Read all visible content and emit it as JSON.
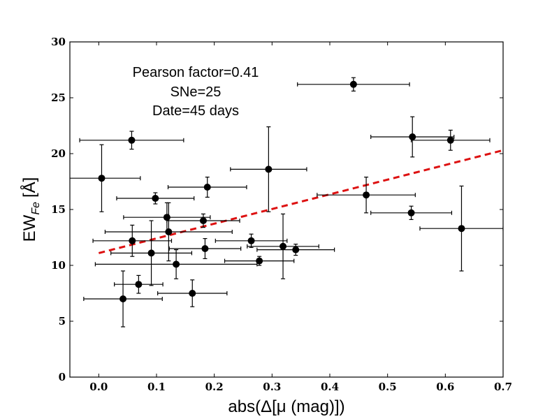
{
  "chart_data": {
    "type": "scatter",
    "annotations": [
      "Pearson factor=0.41",
      "SNe=25",
      "Date=45 days"
    ],
    "xlabel": "abs(Δ[μ (mag)])",
    "ylabel_main": "EW",
    "ylabel_sub": "Fe",
    "ylabel_unit": "[Å]",
    "xlim": [
      -0.05,
      0.7
    ],
    "ylim": [
      0,
      30
    ],
    "x_ticks": [
      0.0,
      0.1,
      0.2,
      0.3,
      0.4,
      0.5,
      0.6,
      0.7
    ],
    "x_tick_labels": [
      "0.0",
      "0.1",
      "0.2",
      "0.3",
      "0.4",
      "0.5",
      "0.6",
      "0.7"
    ],
    "y_ticks": [
      0,
      5,
      10,
      15,
      20,
      25,
      30
    ],
    "y_tick_labels": [
      "0",
      "5",
      "10",
      "15",
      "20",
      "25",
      "30"
    ],
    "fit_line": {
      "x": [
        0.0,
        0.7
      ],
      "y": [
        11.1,
        20.3
      ],
      "color": "#dd1111",
      "style": "dashed"
    },
    "points": [
      {
        "x": 0.005,
        "y": 17.8,
        "xerr": 0.067,
        "yerr": 3.0
      },
      {
        "x": 0.057,
        "y": 21.2,
        "xerr": 0.09,
        "yerr": 0.8
      },
      {
        "x": 0.042,
        "y": 7.0,
        "xerr": 0.068,
        "yerr": 2.5
      },
      {
        "x": 0.058,
        "y": 12.2,
        "xerr": 0.068,
        "yerr": 1.4
      },
      {
        "x": 0.069,
        "y": 8.3,
        "xerr": 0.042,
        "yerr": 0.8
      },
      {
        "x": 0.091,
        "y": 11.1,
        "xerr": 0.07,
        "yerr": 2.9
      },
      {
        "x": 0.098,
        "y": 16.0,
        "xerr": 0.067,
        "yerr": 0.5
      },
      {
        "x": 0.118,
        "y": 14.3,
        "xerr": 0.075,
        "yerr": 1.3
      },
      {
        "x": 0.121,
        "y": 13.0,
        "xerr": 0.11,
        "yerr": 2.6
      },
      {
        "x": 0.134,
        "y": 10.1,
        "xerr": 0.14,
        "yerr": 1.3
      },
      {
        "x": 0.162,
        "y": 7.5,
        "xerr": 0.06,
        "yerr": 1.2
      },
      {
        "x": 0.181,
        "y": 14.0,
        "xerr": 0.063,
        "yerr": 0.6
      },
      {
        "x": 0.184,
        "y": 11.5,
        "xerr": 0.062,
        "yerr": 0.9
      },
      {
        "x": 0.188,
        "y": 17.0,
        "xerr": 0.068,
        "yerr": 0.9
      },
      {
        "x": 0.264,
        "y": 12.2,
        "xerr": 0.062,
        "yerr": 0.6
      },
      {
        "x": 0.278,
        "y": 10.4,
        "xerr": 0.06,
        "yerr": 0.4
      },
      {
        "x": 0.294,
        "y": 18.6,
        "xerr": 0.066,
        "yerr": 3.8
      },
      {
        "x": 0.319,
        "y": 11.7,
        "xerr": 0.062,
        "yerr": 2.9
      },
      {
        "x": 0.341,
        "y": 11.4,
        "xerr": 0.067,
        "yerr": 0.5
      },
      {
        "x": 0.441,
        "y": 26.2,
        "xerr": 0.097,
        "yerr": 0.6
      },
      {
        "x": 0.463,
        "y": 16.3,
        "xerr": 0.085,
        "yerr": 1.6
      },
      {
        "x": 0.541,
        "y": 14.7,
        "xerr": 0.07,
        "yerr": 0.6
      },
      {
        "x": 0.543,
        "y": 21.5,
        "xerr": 0.072,
        "yerr": 1.8
      },
      {
        "x": 0.609,
        "y": 21.2,
        "xerr": 0.068,
        "yerr": 0.9
      },
      {
        "x": 0.628,
        "y": 13.3,
        "xerr": 0.072,
        "yerr": 3.8
      }
    ]
  }
}
